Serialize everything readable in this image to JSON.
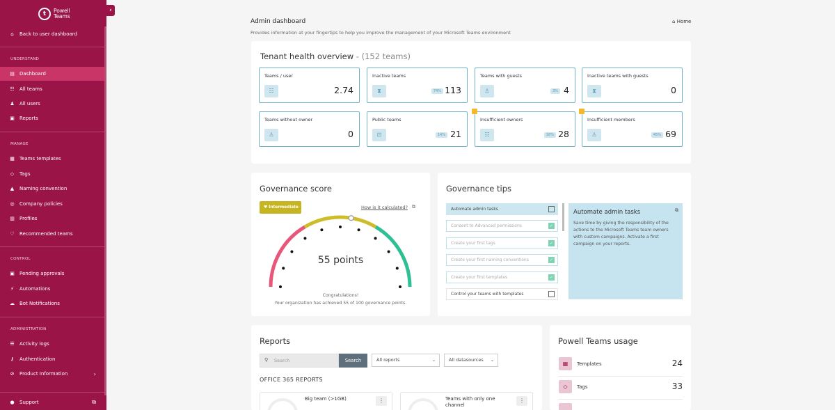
{
  "brand": {
    "logo_text_1": "Powell",
    "logo_text_2": "Teams",
    "logo_glyph": "t"
  },
  "sidebar": {
    "back": "Back to user dashboard",
    "sections": {
      "understand": "UNDERSTAND",
      "manage": "MANAGE",
      "control": "CONTROL",
      "administration": "ADMINISTRATION"
    },
    "items": [
      {
        "label": "Dashboard",
        "icon": "dashboard-icon"
      },
      {
        "label": "All teams",
        "icon": "teams-icon"
      },
      {
        "label": "All users",
        "icon": "users-icon"
      },
      {
        "label": "Reports",
        "icon": "reports-icon"
      },
      {
        "label": "Teams templates",
        "icon": "templates-icon"
      },
      {
        "label": "Tags",
        "icon": "tag-icon"
      },
      {
        "label": "Naming convention",
        "icon": "naming-icon"
      },
      {
        "label": "Company policies",
        "icon": "policies-icon"
      },
      {
        "label": "Profiles",
        "icon": "profiles-icon"
      },
      {
        "label": "Recommended teams",
        "icon": "heart-icon"
      },
      {
        "label": "Pending approvals",
        "icon": "approvals-icon"
      },
      {
        "label": "Automations",
        "icon": "automations-icon"
      },
      {
        "label": "Bot Notifications",
        "icon": "bot-icon"
      },
      {
        "label": "Activity logs",
        "icon": "logs-icon"
      },
      {
        "label": "Authentication",
        "icon": "key-icon"
      },
      {
        "label": "Product Information",
        "icon": "info-icon"
      }
    ],
    "support": "Support"
  },
  "header": {
    "title": "Admin dashboard",
    "subtitle": "Provides information at your fingertips to help you improve the management of your Microsoft Teams environment",
    "home": "Home"
  },
  "tenant_health": {
    "title": "Tenant health overview",
    "subtitle": "- (152 teams)",
    "tiles": [
      {
        "label": "Teams / user",
        "value": "2.74",
        "pct": ""
      },
      {
        "label": "Inactive teams",
        "value": "113",
        "pct": "74%"
      },
      {
        "label": "Teams with guests",
        "value": "4",
        "pct": "3%"
      },
      {
        "label": "Inactive teams with guests",
        "value": "0",
        "pct": ""
      },
      {
        "label": "Teams without owner",
        "value": "0",
        "pct": ""
      },
      {
        "label": "Public teams",
        "value": "21",
        "pct": "14%"
      },
      {
        "label": "Insufficient owners",
        "value": "28",
        "pct": "18%"
      },
      {
        "label": "Insufficient members",
        "value": "69",
        "pct": "45%"
      }
    ]
  },
  "governance_score": {
    "title": "Governance score",
    "level": "Intermediate",
    "link": "How is it calculated?",
    "points": "55 points",
    "points_value": 55,
    "max_points": 100,
    "congrats": "Congratulations!",
    "detail": "Your organization has achieved 55 of 100 governance points.",
    "colors": {
      "low": "#e8567a",
      "mid": "#cdbd2a",
      "high": "#2fbf94"
    }
  },
  "governance_tips": {
    "title": "Governance tips",
    "items": [
      {
        "label": "Automate admin tasks",
        "done": false
      },
      {
        "label": "Consent to Advanced permissions",
        "done": true
      },
      {
        "label": "Create your first tags",
        "done": true
      },
      {
        "label": "Create your first naming conventions",
        "done": true
      },
      {
        "label": "Create your first templates",
        "done": true
      },
      {
        "label": "Control your teams with templates",
        "done": false
      }
    ],
    "detail_title": "Automate admin tasks",
    "detail_text": "Save time by giving the responsibility of the actions to the Microsoft Teams team owners with custom campaigns. Activate a first campaign on your reports."
  },
  "reports": {
    "title": "Reports",
    "search_placeholder": "Search",
    "search_button": "Search",
    "filter_reports": "All reports",
    "filter_datasources": "All datasources",
    "section": "OFFICE 365 REPORTS",
    "cards": [
      {
        "name": "Big team (>1GB)"
      },
      {
        "name": "Teams with only one channel"
      }
    ]
  },
  "usage": {
    "title": "Powell Teams usage",
    "rows": [
      {
        "label": "Templates",
        "value": "24"
      },
      {
        "label": "Tags",
        "value": "33"
      }
    ]
  }
}
